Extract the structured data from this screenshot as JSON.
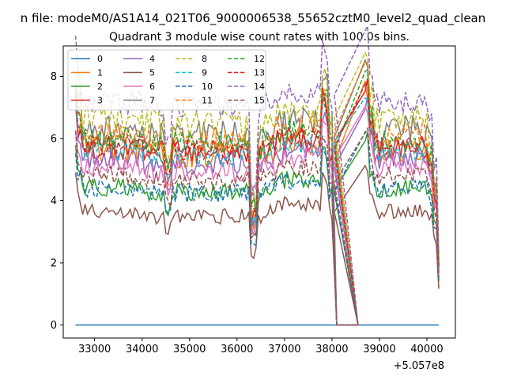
{
  "figure": {
    "suptitle": "n file: modeM0/AS1A14_021T06_9000006538_55652cztM0_level2_quad_clean",
    "offset_label": "+5.057e8"
  },
  "chart_data": {
    "type": "line",
    "title": "Quadrant 3 module wise count rates with 100.0s bins.",
    "xlabel": "",
    "ylabel": "",
    "xlim": [
      32340,
      40600
    ],
    "ylim": [
      -0.42,
      8.98
    ],
    "x_ticks": [
      33000,
      34000,
      35000,
      36000,
      37000,
      38000,
      39000,
      40000
    ],
    "x_tick_labels": [
      "33000",
      "34000",
      "35000",
      "36000",
      "37000",
      "38000",
      "39000",
      "40000"
    ],
    "y_ticks": [
      0,
      2,
      4,
      6,
      8
    ],
    "y_tick_labels": [
      "0",
      "2",
      "4",
      "6",
      "8"
    ],
    "grid": false,
    "legend": {
      "placement": "top-left",
      "columns": 4
    },
    "colors": [
      "#1f77b4",
      "#ff7f0e",
      "#2ca02c",
      "#d62728",
      "#9467bd",
      "#8c564b",
      "#e377c2",
      "#7f7f7f",
      "#bcbd22",
      "#17becf"
    ],
    "gap": {
      "drop_end": 38050,
      "flat_start": 38100,
      "flat_end": 38550,
      "rise_end": 38700
    },
    "base_x": {
      "start": 32600,
      "step": 100,
      "end": 40200
    },
    "features": {
      "x": [
        32600,
        32650,
        32750,
        34550,
        36350,
        36450,
        37850,
        37950,
        38750,
        38800,
        38900,
        40100,
        40150,
        40250
      ],
      "multipliers": [
        1.28,
        1.12,
        1.0,
        0.88,
        0.62,
        0.95,
        1.22,
        0.98,
        1.35,
        1.12,
        1.0,
        0.92,
        0.72,
        0.35
      ]
    },
    "series": [
      {
        "name": "0",
        "style": "solid",
        "level": 0.0,
        "noise": 0.0
      },
      {
        "name": "1",
        "style": "solid",
        "level": 5.7,
        "noise": 0.5
      },
      {
        "name": "2",
        "style": "solid",
        "level": 4.4,
        "noise": 0.3
      },
      {
        "name": "3",
        "style": "solid",
        "level": 5.7,
        "noise": 0.4
      },
      {
        "name": "4",
        "style": "solid",
        "level": 5.35,
        "noise": 0.35
      },
      {
        "name": "5",
        "style": "solid",
        "level": 3.65,
        "noise": 0.25
      },
      {
        "name": "6",
        "style": "solid",
        "level": 5.1,
        "noise": 0.35
      },
      {
        "name": "7",
        "style": "solid",
        "level": 6.3,
        "noise": 0.45
      },
      {
        "name": "8",
        "style": "dashed",
        "level": 6.6,
        "noise": 0.45
      },
      {
        "name": "9",
        "style": "dashed",
        "level": 5.6,
        "noise": 0.35
      },
      {
        "name": "10",
        "style": "dashed",
        "level": 4.4,
        "noise": 0.3
      },
      {
        "name": "11",
        "style": "dashed",
        "level": 6.1,
        "noise": 0.4
      },
      {
        "name": "12",
        "style": "dashed",
        "level": 6.0,
        "noise": 0.4
      },
      {
        "name": "13",
        "style": "dashed",
        "level": 5.8,
        "noise": 0.35
      },
      {
        "name": "14",
        "style": "dashed",
        "level": 7.2,
        "noise": 0.4
      },
      {
        "name": "15",
        "style": "dashed",
        "level": 4.8,
        "noise": 0.3
      }
    ]
  }
}
